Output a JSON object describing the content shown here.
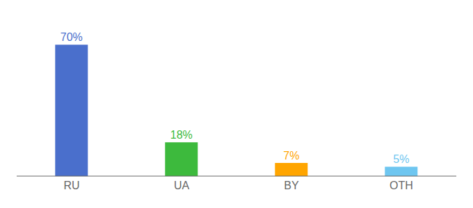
{
  "chart_data": {
    "type": "bar",
    "categories": [
      "RU",
      "UA",
      "BY",
      "OTH"
    ],
    "values": [
      70,
      18,
      7,
      5
    ],
    "value_labels": [
      "70%",
      "18%",
      "7%",
      "5%"
    ],
    "colors": [
      "#4a6fcc",
      "#3dba3d",
      "#ffa500",
      "#6ec6f0"
    ],
    "ylim": [
      0,
      82
    ],
    "data_labels": true,
    "tick_labels": "x"
  }
}
